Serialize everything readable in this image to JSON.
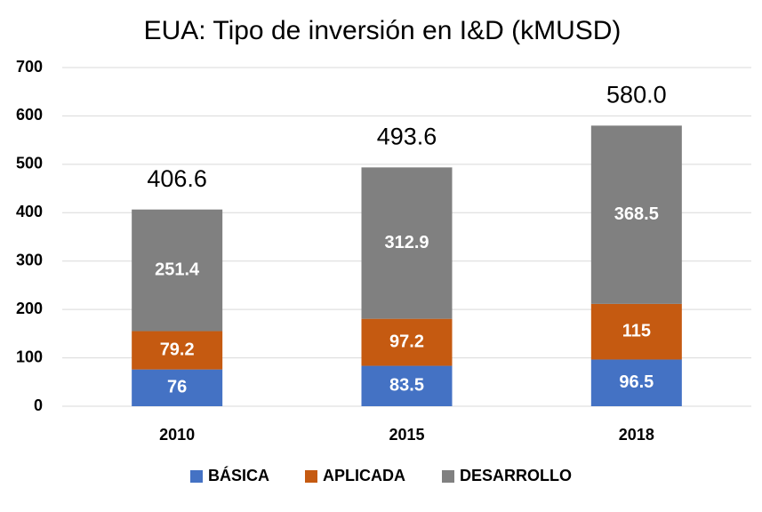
{
  "chart_data": {
    "type": "stacked_bar",
    "title": "EUA: Tipo de inversión en I&D (kMUSD)",
    "categories": [
      "2010",
      "2015",
      "2018"
    ],
    "series": [
      {
        "name": "BÁSICA",
        "color": "#4472c4",
        "values": [
          76,
          83.5,
          96.5
        ]
      },
      {
        "name": "APLICADA",
        "color": "#c55a11",
        "values": [
          79.2,
          97.2,
          115
        ]
      },
      {
        "name": "DESARROLLO",
        "color": "#808080",
        "values": [
          251.4,
          312.9,
          368.5
        ]
      }
    ],
    "totals": {
      "values": [
        406.6,
        493.6,
        580
      ],
      "value_labels": [
        "406.6",
        "493.6",
        "580.0"
      ]
    },
    "ylim": [
      0,
      700
    ],
    "yticks": [
      0,
      100,
      200,
      300,
      400,
      500,
      600,
      700
    ],
    "grid": true,
    "legend": "bottom"
  }
}
